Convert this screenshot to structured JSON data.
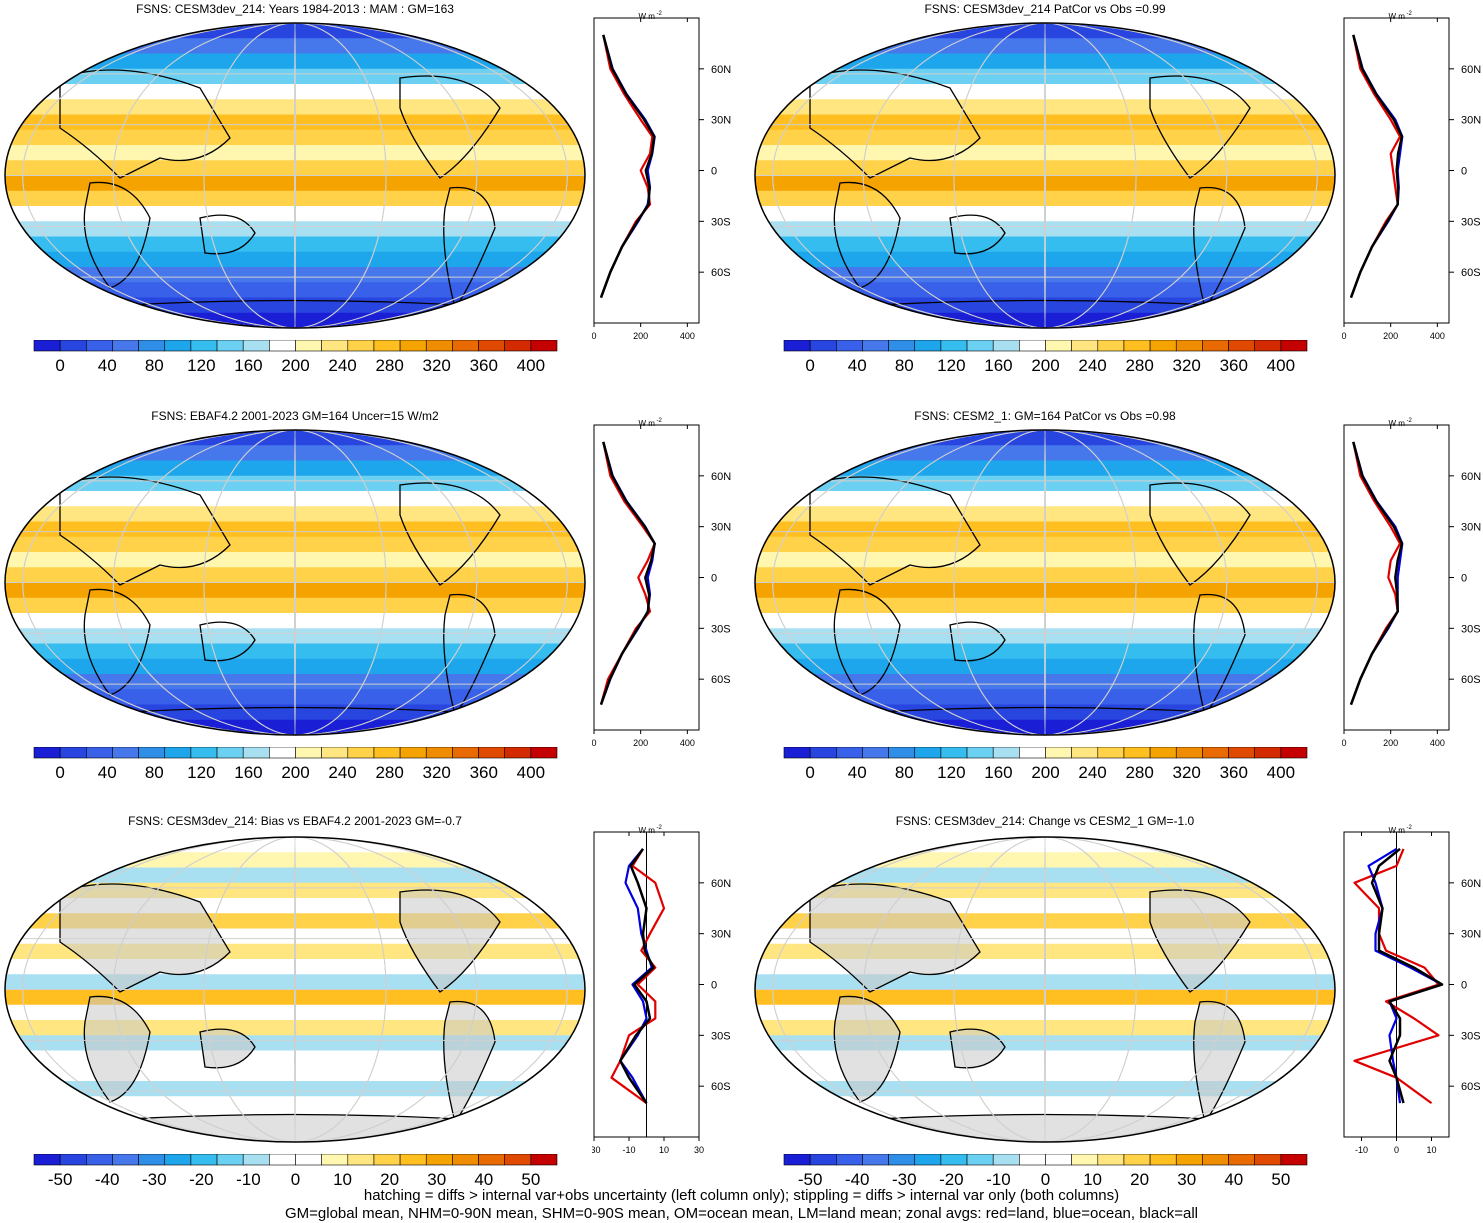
{
  "panels": [
    {
      "title": "FSNS: CESM3dev_214: Years 1984-2013 : MAM : GM=163",
      "kind": "mean"
    },
    {
      "title": "FSNS: CESM3dev_214 PatCor vs Obs =0.99",
      "kind": "mean"
    },
    {
      "title": "FSNS: EBAF4.2 2001-2023 GM=164 Uncer=15 W/m2",
      "kind": "mean"
    },
    {
      "title": "FSNS: CESM2_1: GM=164 PatCor vs Obs =0.98",
      "kind": "mean"
    },
    {
      "title": "FSNS: CESM3dev_214: Bias vs EBAF4.2 2001-2023 GM=-0.7",
      "kind": "diff"
    },
    {
      "title": "FSNS: CESM3dev_214: Change vs CESM2_1 GM=-1.0",
      "kind": "diff"
    }
  ],
  "zonal_unit": "W m",
  "zonal_unit_exp": "-2",
  "lat_ticks": [
    "60N",
    "30N",
    "0",
    "30S",
    "60S"
  ],
  "chart_data": [
    {
      "type": "heatmap",
      "colorbar": {
        "labels": [
          "0",
          "40",
          "80",
          "120",
          "160",
          "200",
          "240",
          "280",
          "320",
          "360",
          "400"
        ]
      },
      "zonal": {
        "type": "line",
        "xticks": [
          "0",
          "200",
          "400"
        ],
        "xlim": [
          0,
          450
        ],
        "lat": [
          80,
          60,
          45,
          30,
          20,
          10,
          0,
          -10,
          -20,
          -30,
          -45,
          -60,
          -75
        ],
        "series": [
          {
            "name": "land",
            "values": [
              40,
              70,
              130,
              200,
              250,
              240,
              200,
              230,
              240,
              180,
              120,
              70,
              30
            ]
          },
          {
            "name": "ocean",
            "values": [
              40,
              80,
              140,
              220,
              260,
              250,
              230,
              240,
              230,
              190,
              120,
              70,
              30
            ]
          },
          {
            "name": "all",
            "values": [
              40,
              78,
              138,
              215,
              258,
              248,
              222,
              238,
              234,
              186,
              120,
              70,
              30
            ]
          }
        ]
      }
    },
    {
      "type": "heatmap",
      "colorbar": {
        "labels": [
          "0",
          "40",
          "80",
          "120",
          "160",
          "200",
          "240",
          "280",
          "320",
          "360",
          "400"
        ]
      },
      "zonal": {
        "type": "line",
        "xticks": [
          "0",
          "200",
          "400"
        ],
        "xlim": [
          0,
          450
        ],
        "lat": [
          80,
          60,
          45,
          30,
          20,
          10,
          0,
          -10,
          -20,
          -30,
          -45,
          -60,
          -75
        ],
        "series": [
          {
            "name": "land",
            "values": [
              40,
              70,
              130,
              200,
              240,
              200,
              210,
              220,
              230,
              180,
              120,
              70,
              30
            ]
          },
          {
            "name": "ocean",
            "values": [
              40,
              80,
              140,
              220,
              250,
              240,
              230,
              235,
              230,
              190,
              120,
              70,
              30
            ]
          },
          {
            "name": "all",
            "values": [
              40,
              78,
              138,
              214,
              248,
              232,
              226,
              232,
              230,
              186,
              120,
              70,
              30
            ]
          }
        ]
      }
    },
    {
      "type": "heatmap",
      "colorbar": {
        "labels": [
          "0",
          "40",
          "80",
          "120",
          "160",
          "200",
          "240",
          "280",
          "320",
          "360",
          "400"
        ]
      },
      "zonal": {
        "type": "line",
        "xticks": [
          "0",
          "200",
          "400"
        ],
        "xlim": [
          0,
          450
        ],
        "lat": [
          80,
          60,
          45,
          30,
          20,
          10,
          0,
          -10,
          -20,
          -30,
          -45,
          -60,
          -75
        ],
        "series": [
          {
            "name": "land",
            "values": [
              40,
              70,
              130,
              210,
              260,
              230,
              190,
              220,
              240,
              180,
              120,
              60,
              30
            ]
          },
          {
            "name": "ocean",
            "values": [
              40,
              80,
              140,
              220,
              260,
              250,
              230,
              240,
              230,
              190,
              120,
              70,
              30
            ]
          },
          {
            "name": "all",
            "values": [
              40,
              78,
              138,
              218,
              260,
              245,
              220,
              236,
              232,
              187,
              120,
              68,
              30
            ]
          }
        ]
      }
    },
    {
      "type": "heatmap",
      "colorbar": {
        "labels": [
          "0",
          "40",
          "80",
          "120",
          "160",
          "200",
          "240",
          "280",
          "320",
          "360",
          "400"
        ]
      },
      "zonal": {
        "type": "line",
        "xticks": [
          "0",
          "200",
          "400"
        ],
        "xlim": [
          0,
          450
        ],
        "lat": [
          80,
          60,
          45,
          30,
          20,
          10,
          0,
          -10,
          -20,
          -30,
          -45,
          -60,
          -75
        ],
        "series": [
          {
            "name": "land",
            "values": [
              40,
              70,
              130,
              200,
              240,
              200,
              190,
              220,
              230,
              180,
              120,
              70,
              30
            ]
          },
          {
            "name": "ocean",
            "values": [
              40,
              80,
              140,
              220,
              250,
              240,
              230,
              230,
              230,
              190,
              120,
              70,
              30
            ]
          },
          {
            "name": "all",
            "values": [
              40,
              78,
              138,
              214,
              248,
              230,
              220,
              228,
              230,
              186,
              120,
              70,
              30
            ]
          }
        ]
      }
    },
    {
      "type": "heatmap",
      "colorbar": {
        "labels": [
          "-50",
          "-40",
          "-30",
          "-20",
          "-10",
          "0",
          "10",
          "20",
          "30",
          "40",
          "50"
        ]
      },
      "zonal": {
        "type": "line",
        "xticks": [
          "-30",
          "-10",
          "10",
          "30"
        ],
        "xlim": [
          -30,
          30
        ],
        "lat": [
          80,
          70,
          60,
          45,
          30,
          20,
          10,
          0,
          -10,
          -20,
          -30,
          -45,
          -55,
          -70
        ],
        "series": [
          {
            "name": "land",
            "values": [
              -2,
              -8,
              5,
              10,
              2,
              -3,
              5,
              -5,
              5,
              5,
              -10,
              -15,
              -20,
              0
            ]
          },
          {
            "name": "ocean",
            "values": [
              -2,
              -10,
              -12,
              -5,
              -3,
              0,
              3,
              -8,
              -2,
              0,
              -5,
              -15,
              -8,
              0
            ]
          },
          {
            "name": "all",
            "values": [
              -2,
              -9,
              -5,
              0,
              -2,
              -1,
              4,
              -7,
              0,
              2,
              -6,
              -15,
              -10,
              0
            ]
          }
        ]
      }
    },
    {
      "type": "heatmap",
      "colorbar": {
        "labels": [
          "-50",
          "-40",
          "-30",
          "-20",
          "-10",
          "0",
          "10",
          "20",
          "30",
          "40",
          "50"
        ]
      },
      "zonal": {
        "type": "line",
        "xticks": [
          "-10",
          "0",
          "10"
        ],
        "xlim": [
          -15,
          15
        ],
        "lat": [
          80,
          70,
          60,
          45,
          30,
          20,
          10,
          0,
          -10,
          -20,
          -30,
          -45,
          -55,
          -70
        ],
        "series": [
          {
            "name": "land",
            "values": [
              2,
              0,
              -12,
              -5,
              -5,
              -3,
              8,
              12,
              -3,
              5,
              12,
              -12,
              0,
              10
            ]
          },
          {
            "name": "ocean",
            "values": [
              0,
              -8,
              -6,
              -4,
              -6,
              -6,
              4,
              13,
              -2,
              0,
              -2,
              -1,
              0,
              1
            ]
          },
          {
            "name": "all",
            "values": [
              1,
              -5,
              -7,
              -4,
              -5,
              -5,
              5,
              13,
              -2,
              1,
              1,
              -2,
              0,
              2
            ]
          }
        ]
      }
    }
  ],
  "footer": [
    "hatching = diffs > internal var+obs uncertainty (left column only); stippling = diffs > internal var only (both columns)",
    "GM=global mean, NHM=0-90N mean, SHM=0-90S mean, OM=ocean mean, LM=land mean; zonal avgs: red=land, blue=ocean, black=all"
  ],
  "colors": {
    "mean": [
      "#1a1fd6",
      "#2945e0",
      "#3860e8",
      "#4678ec",
      "#2f8fe8",
      "#1ea6ec",
      "#36bdf0",
      "#6cd0f2",
      "#a8e0f2",
      "#ffffff",
      "#fff6b0",
      "#ffe680",
      "#ffd24a",
      "#ffbf20",
      "#f5a300",
      "#f08c00",
      "#e86a00",
      "#e04a00",
      "#d42a00",
      "#c40000"
    ],
    "land": "#e00000",
    "ocean": "#0000e0",
    "all": "#000000",
    "landmask": "#c8c8c8"
  }
}
